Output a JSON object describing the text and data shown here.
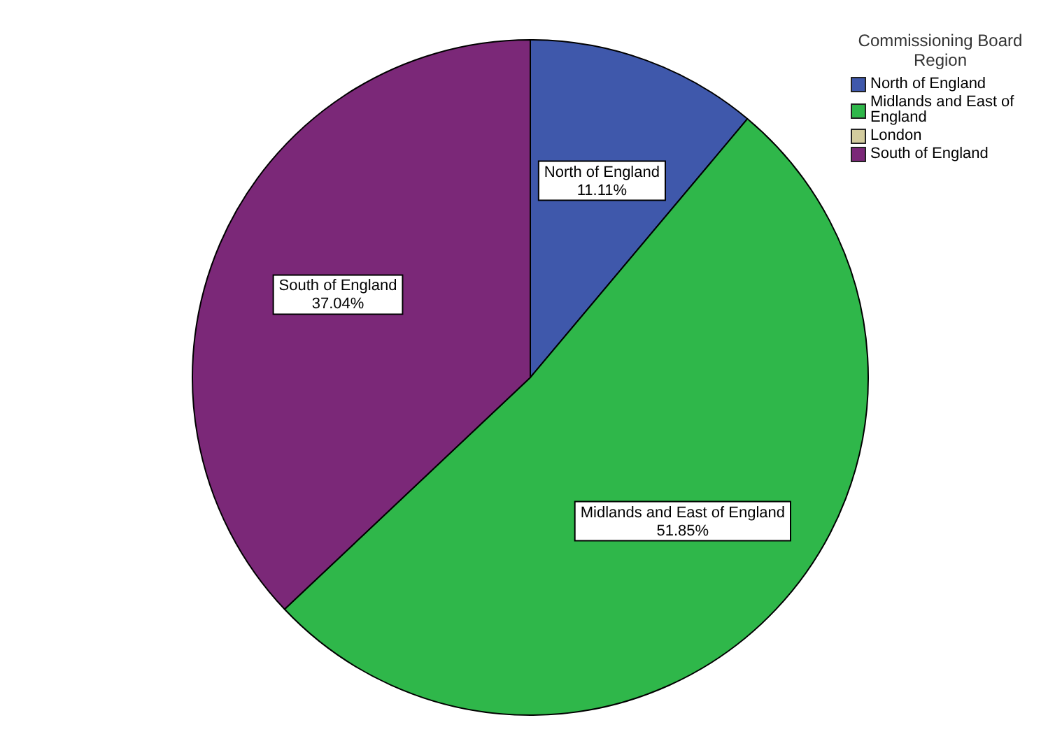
{
  "chart_data": {
    "type": "pie",
    "legend_title": "Commissioning Board Region",
    "categories": [
      "North of England",
      "Midlands and East of England",
      "London",
      "South of England"
    ],
    "values": [
      11.11,
      51.85,
      0,
      37.04
    ],
    "value_labels": [
      "11.11%",
      "51.85%",
      null,
      "37.04%"
    ],
    "colors": [
      "#3f58ab",
      "#2fb74a",
      "#d3cc9e",
      "#7b2878"
    ],
    "legend": "top right"
  }
}
